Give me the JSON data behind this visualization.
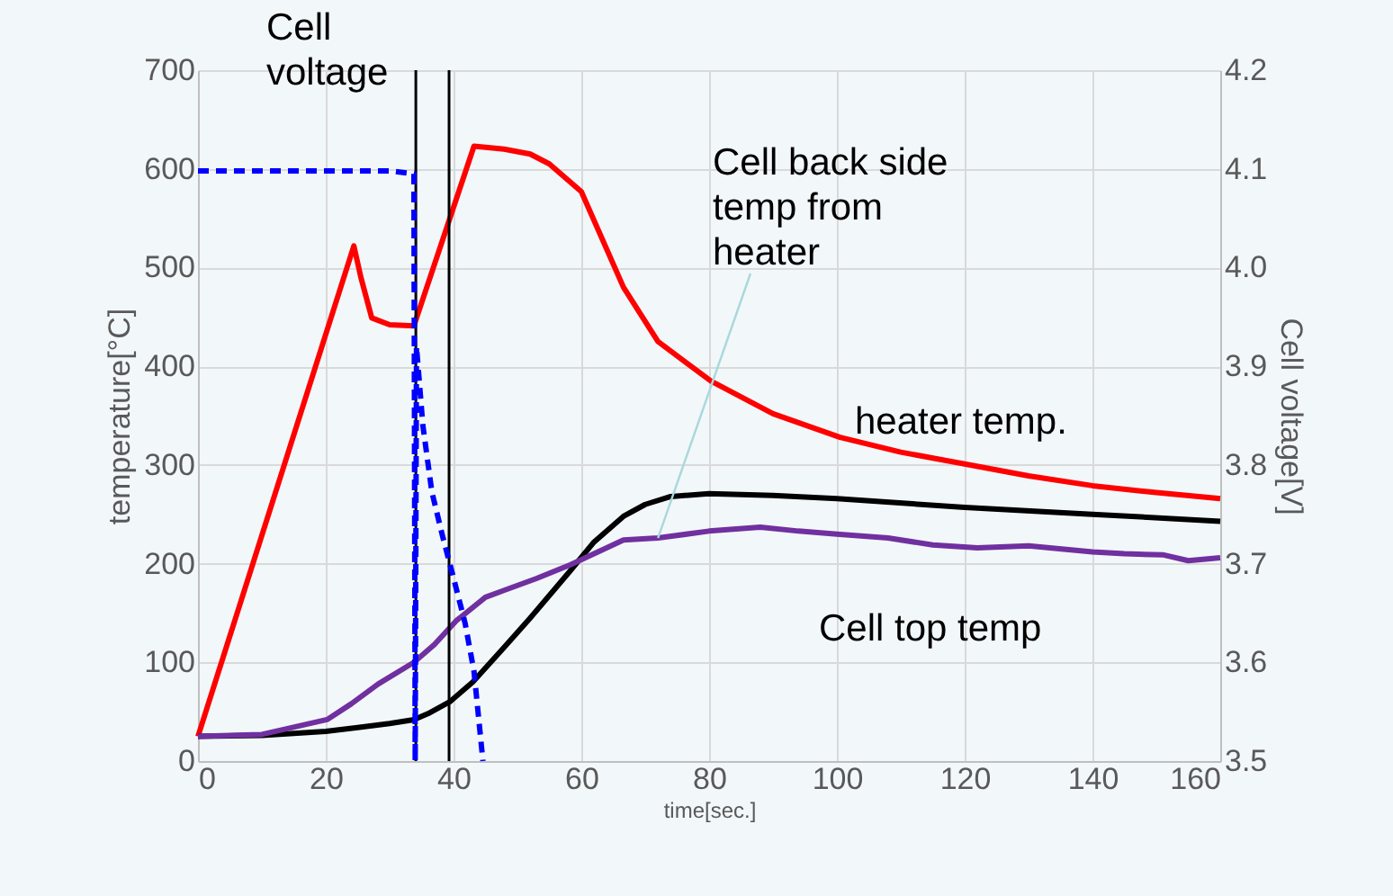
{
  "chart_data": {
    "type": "line",
    "xlabel": "time[sec.]",
    "ylabel": "temperature[°C]",
    "y2label": "Cell voltage[V]",
    "xlim": [
      0,
      160
    ],
    "xticks": [
      0,
      20,
      40,
      60,
      80,
      100,
      120,
      140,
      160
    ],
    "ylim": [
      0,
      700
    ],
    "yticks": [
      0,
      100,
      200,
      300,
      400,
      500,
      600,
      700
    ],
    "y2lim": [
      3.5,
      4.2
    ],
    "y2ticks": [
      3.5,
      3.6,
      3.7,
      3.8,
      3.9,
      {
        "value": 4.0,
        "label": "4.0"
      },
      4.1,
      4.2
    ],
    "grid": true,
    "marker": "none",
    "series": [
      {
        "color": "#ff0000",
        "line_style": "solid",
        "x": [
          0,
          24.4,
          25.5,
          27.2,
          30,
          33.8,
          43.2,
          47.9,
          52,
          55,
          60,
          66.6,
          72,
          80.3,
          90,
          100.5,
          110,
          120,
          130,
          140,
          150,
          160
        ],
        "values": [
          25,
          522,
          490,
          449,
          442,
          441,
          623,
          620,
          615,
          605,
          577,
          480,
          425,
          385,
          352,
          328,
          313,
          301,
          289,
          279,
          272,
          266
        ]
      },
      {
        "color": "#000000",
        "line_style": "solid",
        "x": [
          0,
          10,
          20,
          25,
          30,
          33.8,
          36,
          39.4,
          43,
          47.9,
          52,
          58.3,
          62,
          66.6,
          70,
          74,
          80,
          90,
          100,
          120,
          140,
          160
        ],
        "values": [
          25,
          26,
          30,
          34,
          38,
          42,
          48,
          60,
          80,
          115,
          145,
          193,
          222,
          248,
          260,
          268,
          271,
          269,
          266,
          257,
          250,
          243
        ]
      },
      {
        "color": "#7030a0",
        "line_style": "solid",
        "x": [
          0,
          10,
          20.2,
          24,
          28.2,
          33.8,
          37,
          40.4,
          45,
          47.9,
          53,
          58.3,
          62,
          66.6,
          72,
          80,
          88,
          94,
          100,
          108,
          115,
          122,
          130,
          140,
          145,
          151,
          155,
          160
        ],
        "values": [
          25,
          27,
          42,
          58,
          78,
          100,
          118,
          142,
          166,
          173,
          185,
          199,
          210,
          224,
          226,
          233,
          237,
          233,
          230,
          226,
          219,
          216,
          218,
          212,
          210,
          209,
          203,
          206
        ]
      },
      {
        "color": "#0000ff",
        "line_style": "dashed",
        "axis": "y2",
        "x": [
          0,
          10,
          20,
          30,
          33.8,
          34.0,
          34.2,
          35.2,
          36.6,
          38.2,
          39.9,
          41.8,
          43.2,
          44.6
        ],
        "values": [
          4.098,
          4.098,
          4.098,
          4.098,
          4.095,
          3.5,
          3.92,
          3.84,
          3.773,
          3.73,
          3.688,
          3.64,
          3.591,
          3.5
        ]
      }
    ],
    "ref_lines": [
      {
        "axis": "x",
        "value": 34.1,
        "color": "#000000"
      },
      {
        "axis": "x",
        "value": 39.3,
        "color": "#000000"
      }
    ],
    "annotations": [
      "Cell\nvoltage",
      {
        "text": "Cell back side\ntemp from\nheater",
        "x": 72,
        "y": 226
      },
      "heater temp.",
      "Cell top temp"
    ]
  }
}
